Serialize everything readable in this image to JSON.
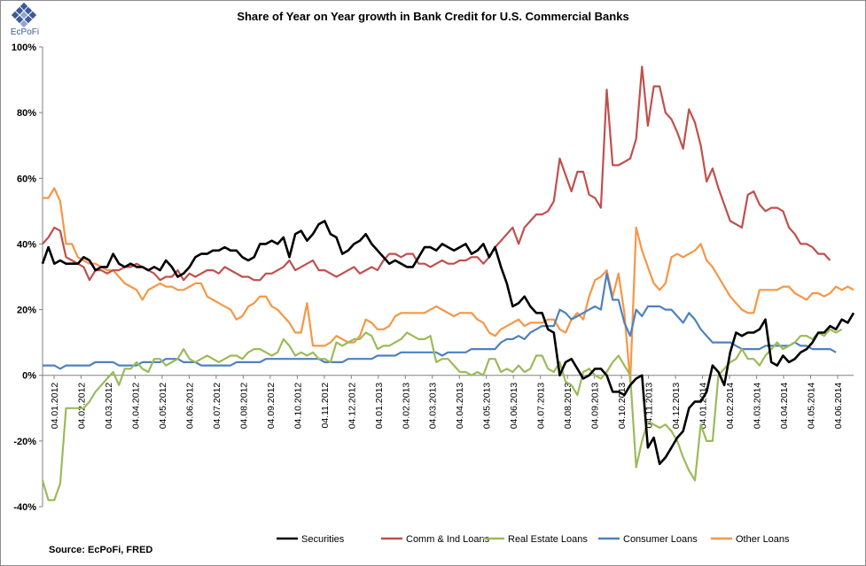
{
  "logo": {
    "label": "EcPoFi"
  },
  "source": "Source: EcPoFi,  FRED",
  "chart_data": {
    "type": "line",
    "title": "Share of Year on Year growth in Bank Credit for U.S. Commercial Banks",
    "xlabel": "",
    "ylabel": "",
    "ylim": [
      -40,
      100
    ],
    "yticks": [
      100,
      80,
      60,
      40,
      20,
      0,
      -20,
      -40
    ],
    "ytick_labels": [
      "100%",
      "80%",
      "60%",
      "40%",
      "20%",
      "0%",
      "-20%",
      "-40%"
    ],
    "x_tick_labels": [
      "04.01.2012",
      "04.02.2012",
      "04.03.2012",
      "04.04.2012",
      "04.05.2012",
      "04.06.2012",
      "04.07.2012",
      "04.08.2012",
      "04.09.2012",
      "04.10.2012",
      "04.11.2012",
      "04.12.2012",
      "04.01.2013",
      "04.02.2013",
      "04.03.2013",
      "04.04.2013",
      "04.05.2013",
      "04.06.2013",
      "04.07.2013",
      "04.08.2013",
      "04.09.2013",
      "04.10.2013",
      "04.11.2013",
      "04.12.2013",
      "04.01.2014",
      "04.02.2014",
      "04.03.2014",
      "04.04.2014",
      "04.05.2014",
      "04.06.2014"
    ],
    "grid": false,
    "legend_position": "bottom",
    "series": [
      {
        "name": "Securities",
        "color": "#000000",
        "values": [
          34,
          39,
          34,
          35,
          34,
          34,
          34,
          36,
          35,
          32,
          33,
          33,
          37,
          34,
          33,
          34,
          33,
          33,
          32,
          33,
          32,
          35,
          33,
          30,
          31,
          33,
          36,
          37,
          37,
          38,
          38,
          39,
          38,
          38,
          36,
          35,
          36,
          40,
          40,
          41,
          40,
          42,
          36,
          43,
          44,
          41,
          43,
          46,
          47,
          43,
          42,
          37,
          38,
          40,
          41,
          43,
          40,
          38,
          36,
          34,
          35,
          34,
          33,
          33,
          36,
          39,
          39,
          38,
          40,
          39,
          38,
          39,
          40,
          37,
          38,
          40,
          36,
          39,
          33,
          28,
          21,
          22,
          24,
          21,
          19,
          19,
          14,
          13,
          0,
          4,
          5,
          2,
          -1,
          0,
          2,
          2,
          0,
          -5,
          -5,
          -6,
          -3,
          -1,
          0,
          -22,
          -19,
          -27,
          -25,
          -22,
          -19,
          -17,
          -10,
          -8,
          -8,
          -5,
          3,
          1,
          -3,
          7,
          13,
          12,
          13,
          13,
          14,
          17,
          4,
          3,
          6,
          4,
          5,
          7,
          8,
          10,
          13,
          13,
          15,
          14,
          17,
          16,
          19
        ]
      },
      {
        "name": "Comm & Ind Loans",
        "color": "#c0504d",
        "values": [
          40,
          42,
          45,
          44,
          36,
          35,
          34,
          33,
          29,
          32,
          32,
          31,
          32,
          32,
          33,
          33,
          34,
          33,
          32,
          31,
          29,
          30,
          30,
          32,
          29,
          31,
          30,
          31,
          32,
          32,
          31,
          33,
          32,
          31,
          30,
          30,
          29,
          29,
          31,
          31,
          32,
          33,
          35,
          32,
          33,
          34,
          35,
          32,
          32,
          31,
          30,
          31,
          32,
          33,
          31,
          32,
          33,
          32,
          35,
          37,
          37,
          36,
          37,
          37,
          34,
          34,
          33,
          34,
          35,
          34,
          34,
          35,
          35,
          36,
          36,
          34,
          36,
          39,
          41,
          43,
          45,
          40,
          45,
          47,
          49,
          49,
          50,
          53,
          66,
          61,
          56,
          62,
          62,
          55,
          54,
          51,
          87,
          64,
          64,
          65,
          66,
          72,
          94,
          76,
          88,
          88,
          80,
          78,
          74,
          69,
          81,
          77,
          70,
          59,
          63,
          57,
          52,
          47,
          46,
          45,
          55,
          56,
          52,
          50,
          51,
          51,
          50,
          45,
          43,
          40,
          40,
          39,
          37,
          37,
          35
        ]
      },
      {
        "name": "Real Estate Loans",
        "color": "#9bbb59",
        "values": [
          -32,
          -38,
          -38,
          -33,
          -10,
          -10,
          -10,
          -10,
          -8,
          -5,
          -3,
          -1,
          1,
          -3,
          2,
          2,
          4,
          2,
          1,
          5,
          5,
          3,
          4,
          5,
          8,
          5,
          4,
          5,
          6,
          5,
          4,
          5,
          6,
          6,
          5,
          7,
          8,
          8,
          7,
          6,
          7,
          11,
          9,
          6,
          7,
          6,
          7,
          5,
          5,
          4,
          10,
          9,
          10,
          11,
          11,
          13,
          12,
          8,
          9,
          9,
          10,
          11,
          13,
          12,
          11,
          11,
          12,
          4,
          5,
          5,
          3,
          1,
          1,
          0,
          1,
          0,
          5,
          5,
          1,
          2,
          1,
          3,
          1,
          2,
          6,
          6,
          2,
          1,
          4,
          -2,
          -3,
          -6,
          1,
          2,
          0,
          -1,
          1,
          4,
          6,
          3,
          0,
          -28,
          -20,
          -14,
          -15,
          -16,
          -15,
          -17,
          -20,
          -25,
          -29,
          -32,
          -15,
          -20,
          -20,
          0,
          2,
          4,
          5,
          8,
          5,
          5,
          3,
          6,
          8,
          10,
          8,
          9,
          10,
          12,
          12,
          11,
          13,
          12,
          14,
          13,
          14
        ]
      },
      {
        "name": "Consumer Loans",
        "color": "#4f81bd",
        "values": [
          3,
          3,
          3,
          2,
          3,
          3,
          3,
          3,
          3,
          4,
          4,
          4,
          4,
          3,
          3,
          3,
          3,
          4,
          4,
          4,
          4,
          5,
          5,
          5,
          4,
          4,
          4,
          3,
          3,
          3,
          3,
          3,
          3,
          4,
          4,
          4,
          4,
          4,
          5,
          5,
          5,
          5,
          5,
          5,
          5,
          5,
          5,
          5,
          4,
          4,
          4,
          4,
          5,
          5,
          5,
          5,
          5,
          6,
          6,
          6,
          6,
          7,
          7,
          7,
          7,
          7,
          7,
          7,
          6,
          7,
          7,
          7,
          7,
          8,
          8,
          8,
          8,
          8,
          10,
          11,
          11,
          12,
          11,
          13,
          14,
          15,
          15,
          15,
          20,
          19,
          17,
          18,
          19,
          20,
          21,
          20,
          31,
          23,
          23,
          16,
          12,
          20,
          18,
          21,
          21,
          21,
          20,
          20,
          18,
          16,
          19,
          17,
          14,
          12,
          10,
          10,
          10,
          10,
          9,
          8,
          8,
          8,
          8,
          9,
          9,
          9,
          9,
          9,
          10,
          9,
          9,
          8,
          8,
          8,
          8,
          7
        ]
      },
      {
        "name": "Other Loans",
        "color": "#f79646",
        "values": [
          54,
          54,
          57,
          53,
          40,
          40,
          36,
          35,
          34,
          34,
          33,
          32,
          32,
          30,
          28,
          27,
          26,
          23,
          26,
          27,
          28,
          27,
          27,
          26,
          26,
          27,
          28,
          28,
          24,
          23,
          22,
          21,
          20,
          17,
          18,
          21,
          22,
          24,
          24,
          21,
          20,
          18,
          16,
          13,
          13,
          22,
          9,
          9,
          9,
          10,
          12,
          11,
          10,
          10,
          12,
          17,
          16,
          14,
          14,
          15,
          18,
          19,
          19,
          19,
          19,
          19,
          20,
          21,
          20,
          19,
          18,
          19,
          19,
          19,
          17,
          16,
          13,
          12,
          14,
          15,
          16,
          17,
          15,
          16,
          16,
          16,
          17,
          17,
          14,
          13,
          17,
          19,
          17,
          24,
          29,
          30,
          32,
          24,
          31,
          19,
          -2,
          45,
          38,
          33,
          28,
          26,
          28,
          36,
          37,
          36,
          37,
          38,
          40,
          35,
          33,
          30,
          27,
          24,
          22,
          20,
          19,
          19,
          26,
          26,
          26,
          26,
          27,
          27,
          25,
          24,
          23,
          25,
          25,
          24,
          25,
          27,
          26,
          27,
          26
        ]
      }
    ]
  }
}
